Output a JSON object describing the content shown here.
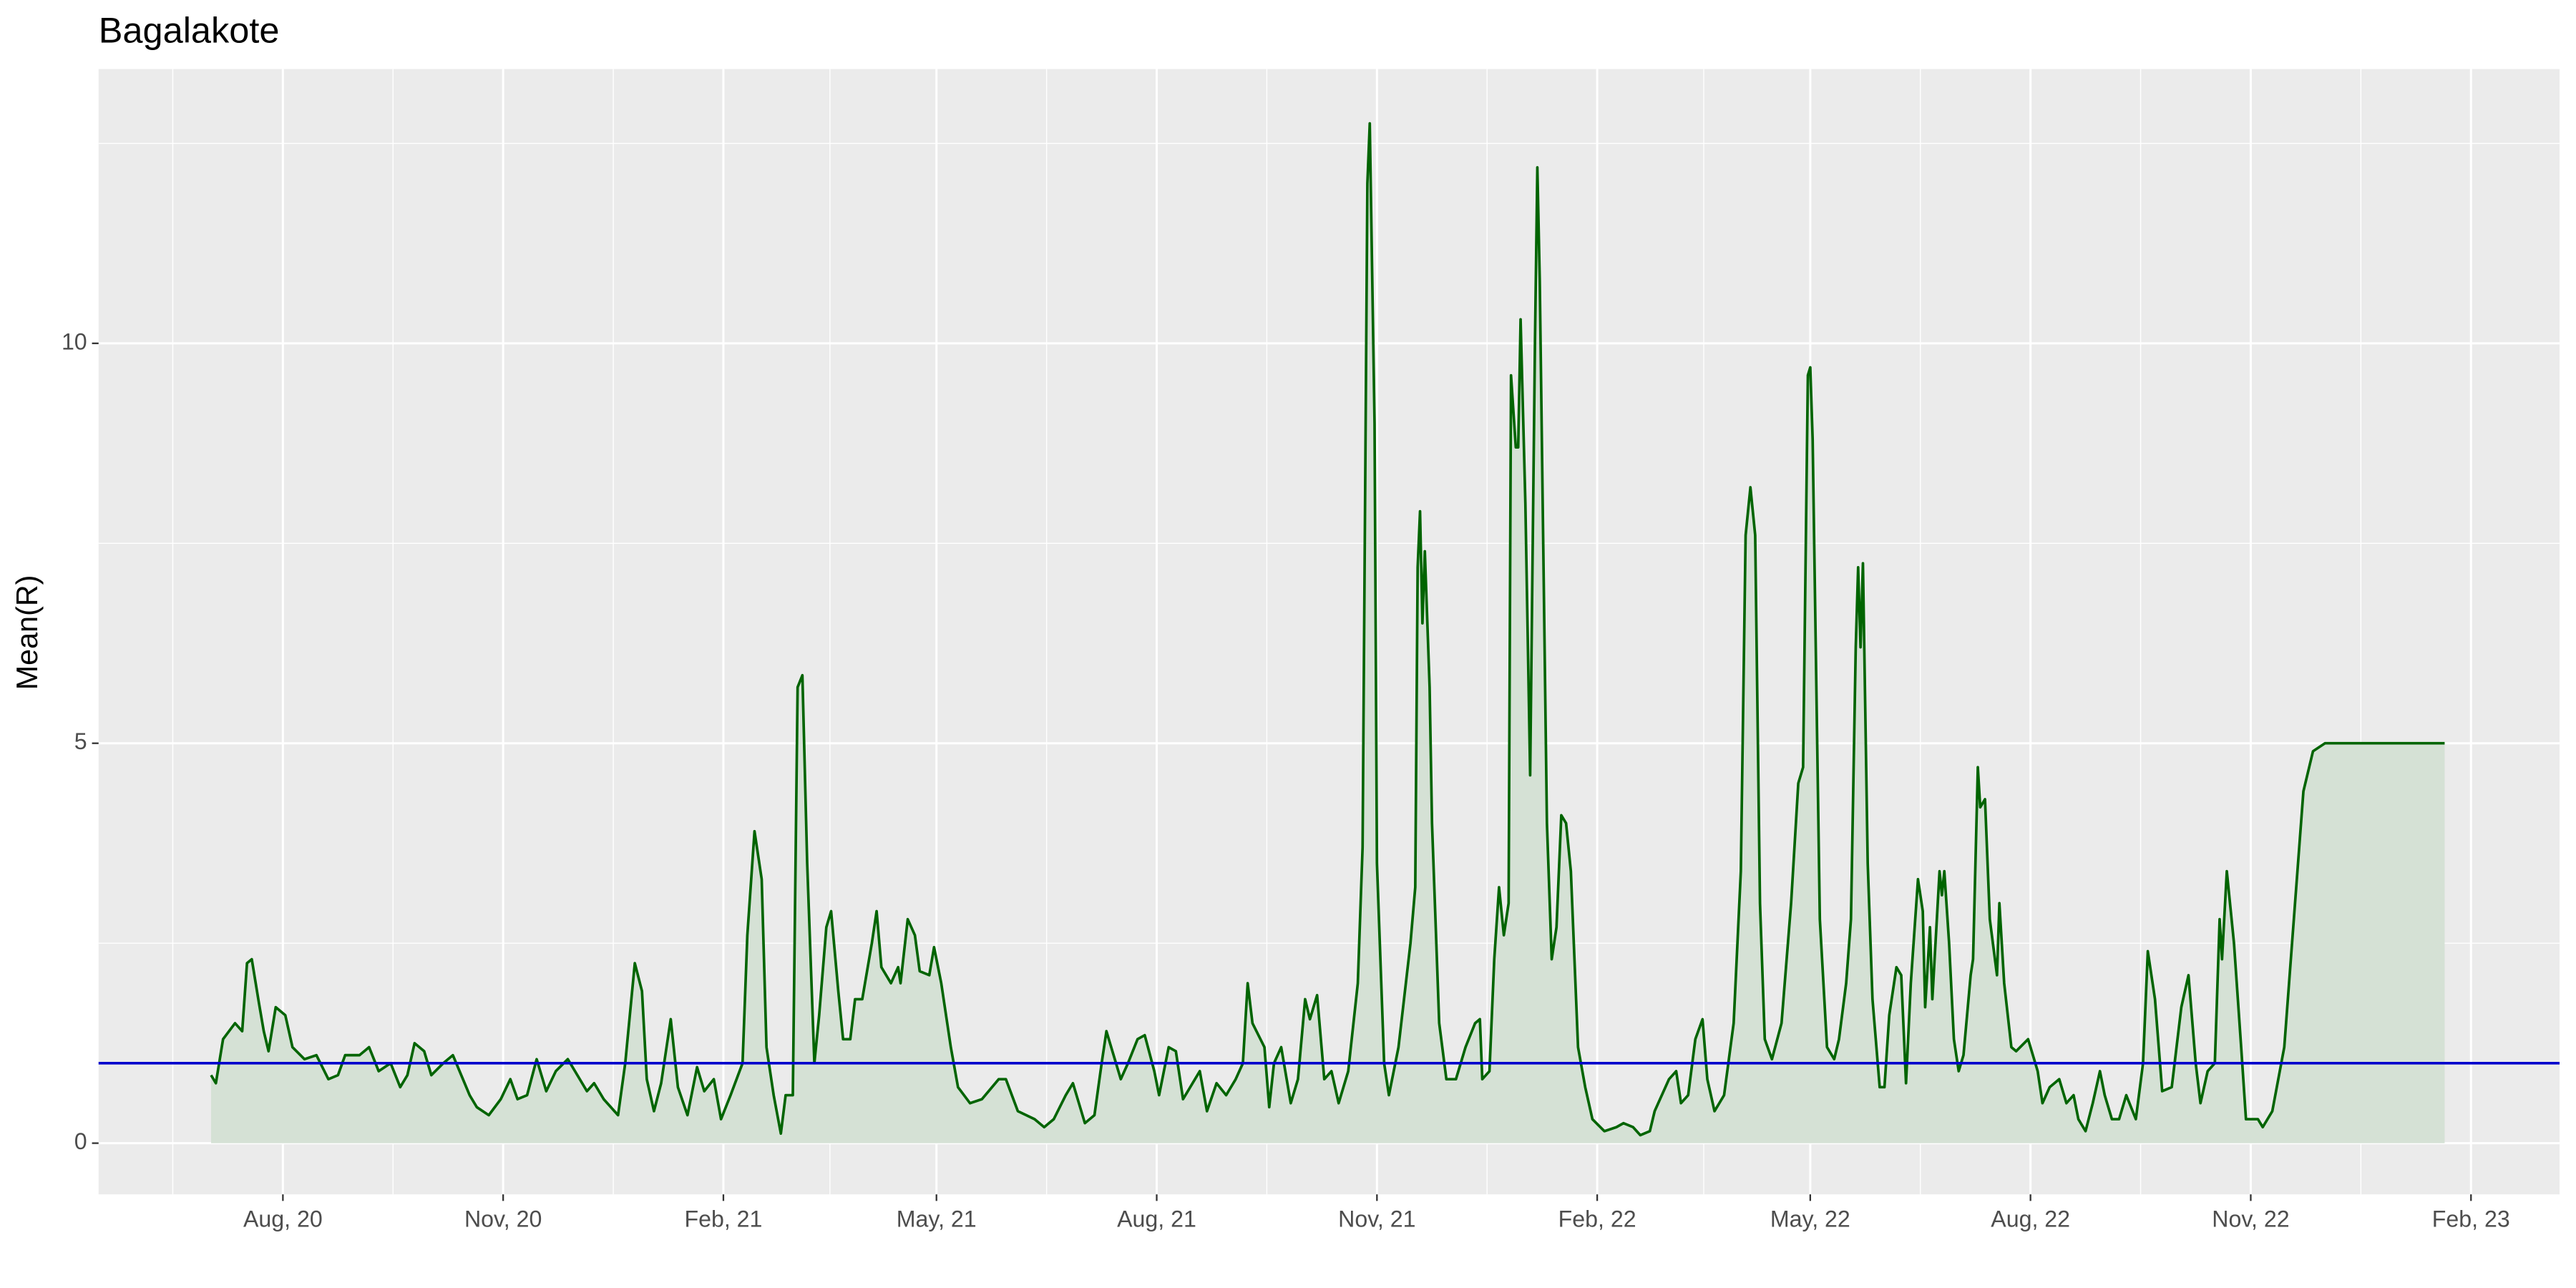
{
  "chart_data": {
    "type": "area-line",
    "title": "Bagalakote",
    "y_label": "Mean(R)",
    "grid": true,
    "hline": {
      "value": 1,
      "color": "#0000cc"
    },
    "xlim": [
      -77,
      951
    ],
    "xticks": [
      {
        "value": 0,
        "label": "Aug, 20"
      },
      {
        "value": 92,
        "label": "Nov, 20"
      },
      {
        "value": 184,
        "label": "Feb, 21"
      },
      {
        "value": 273,
        "label": "May, 21"
      },
      {
        "value": 365,
        "label": "Aug, 21"
      },
      {
        "value": 457,
        "label": "Nov, 21"
      },
      {
        "value": 549,
        "label": "Feb, 22"
      },
      {
        "value": 638,
        "label": "May, 22"
      },
      {
        "value": 730,
        "label": "Aug, 22"
      },
      {
        "value": 822,
        "label": "Nov, 22"
      },
      {
        "value": 914,
        "label": "Feb, 23"
      }
    ],
    "ylim": [
      -0.64,
      13.43
    ],
    "yticks": [
      0,
      5,
      10
    ],
    "x": [
      -30,
      -28,
      -25,
      -20,
      -17,
      -15,
      -13,
      -10,
      -8,
      -6,
      -3,
      1,
      4,
      9,
      14,
      19,
      23,
      26,
      32,
      36,
      40,
      45,
      49,
      52,
      55,
      59,
      62,
      67,
      71,
      78,
      81,
      86,
      91,
      95,
      98,
      102,
      106,
      110,
      114,
      119,
      122,
      127,
      130,
      134,
      140,
      143,
      147,
      150,
      152,
      155,
      158,
      162,
      165,
      169,
      173,
      176,
      180,
      183,
      187,
      192,
      194,
      197,
      200,
      202,
      205,
      208,
      210,
      213,
      215,
      217,
      219,
      222,
      224,
      227,
      229,
      232,
      234,
      237,
      239,
      242,
      246,
      248,
      250,
      254,
      257,
      258,
      261,
      264,
      266,
      270,
      272,
      275,
      279,
      282,
      287,
      292,
      299,
      302,
      307,
      314,
      318,
      322,
      327,
      330,
      332,
      335,
      339,
      342,
      344,
      346,
      350,
      353,
      357,
      360,
      364,
      366,
      370,
      373,
      376,
      379,
      383,
      386,
      390,
      394,
      398,
      401,
      403,
      405,
      410,
      412,
      414,
      417,
      421,
      424,
      427,
      429,
      432,
      435,
      438,
      441,
      445,
      449,
      451,
      453,
      454,
      456,
      457,
      460,
      462,
      466,
      471,
      473,
      474,
      475,
      476,
      477,
      479,
      480,
      483,
      486,
      490,
      494,
      498,
      500,
      501,
      504,
      506,
      508,
      510,
      512,
      513,
      515,
      516,
      517,
      519,
      521,
      523,
      524,
      525,
      528,
      530,
      532,
      534,
      536,
      538,
      541,
      544,
      547,
      552,
      557,
      560,
      564,
      567,
      571,
      573,
      576,
      579,
      582,
      584,
      587,
      590,
      593,
      595,
      598,
      602,
      606,
      609,
      611,
      613,
      615,
      617,
      619,
      622,
      626,
      630,
      633,
      635,
      637,
      638,
      639,
      642,
      645,
      648,
      650,
      653,
      655,
      657,
      658,
      659,
      660,
      662,
      664,
      667,
      669,
      671,
      674,
      676,
      678,
      680,
      683,
      685,
      686,
      688,
      689,
      692,
      693,
      694,
      696,
      698,
      700,
      702,
      705,
      706,
      708,
      709,
      711,
      713,
      716,
      717,
      719,
      722,
      724,
      729,
      733,
      735,
      738,
      742,
      745,
      748,
      750,
      753,
      756,
      759,
      761,
      764,
      767,
      770,
      774,
      777,
      779,
      782,
      785,
      789,
      793,
      796,
      799,
      801,
      804,
      807,
      809,
      810,
      812,
      815,
      818,
      820,
      825,
      827,
      831,
      836,
      840,
      844,
      848,
      853,
      870,
      890,
      903
    ],
    "series": [
      {
        "name": "Mean(R)",
        "color": "#006400",
        "fill": "#d5e1d5",
        "values": [
          0.85,
          0.75,
          1.3,
          1.5,
          1.4,
          2.25,
          2.3,
          1.75,
          1.4,
          1.15,
          1.7,
          1.6,
          1.2,
          1.05,
          1.1,
          0.8,
          0.85,
          1.1,
          1.1,
          1.2,
          0.9,
          1.0,
          0.7,
          0.85,
          1.25,
          1.15,
          0.85,
          1.0,
          1.1,
          0.6,
          0.45,
          0.35,
          0.55,
          0.8,
          0.55,
          0.6,
          1.05,
          0.65,
          0.9,
          1.05,
          0.9,
          0.65,
          0.75,
          0.55,
          0.35,
          1.0,
          2.25,
          1.9,
          0.8,
          0.4,
          0.75,
          1.55,
          0.7,
          0.35,
          0.95,
          0.65,
          0.8,
          0.3,
          0.6,
          1.0,
          2.6,
          3.9,
          3.3,
          1.2,
          0.6,
          0.12,
          0.6,
          0.6,
          5.7,
          5.85,
          3.5,
          1.0,
          1.6,
          2.7,
          2.9,
          1.9,
          1.3,
          1.3,
          1.8,
          1.8,
          2.5,
          2.9,
          2.2,
          2.0,
          2.2,
          2.0,
          2.8,
          2.6,
          2.15,
          2.1,
          2.45,
          2.0,
          1.2,
          0.7,
          0.5,
          0.55,
          0.8,
          0.8,
          0.4,
          0.3,
          0.2,
          0.3,
          0.6,
          0.75,
          0.55,
          0.25,
          0.35,
          1.0,
          1.4,
          1.2,
          0.8,
          1.0,
          1.3,
          1.35,
          0.9,
          0.6,
          1.2,
          1.15,
          0.55,
          0.7,
          0.9,
          0.4,
          0.75,
          0.6,
          0.8,
          1.0,
          2.0,
          1.5,
          1.2,
          0.45,
          1.0,
          1.2,
          0.5,
          0.8,
          1.8,
          1.55,
          1.85,
          0.8,
          0.9,
          0.5,
          0.9,
          2.0,
          3.7,
          12.0,
          12.75,
          9.0,
          3.5,
          1.0,
          0.6,
          1.2,
          2.5,
          3.2,
          7.2,
          7.9,
          6.5,
          7.4,
          5.7,
          4.0,
          1.5,
          0.8,
          0.8,
          1.2,
          1.5,
          1.55,
          0.8,
          0.9,
          2.3,
          3.2,
          2.6,
          3.0,
          9.6,
          8.7,
          8.7,
          10.3,
          8.0,
          4.6,
          10.0,
          12.2,
          10.8,
          4.0,
          2.3,
          2.7,
          4.1,
          4.0,
          3.4,
          1.2,
          0.7,
          0.3,
          0.15,
          0.2,
          0.25,
          0.2,
          0.1,
          0.15,
          0.4,
          0.6,
          0.8,
          0.9,
          0.5,
          0.6,
          1.3,
          1.55,
          0.8,
          0.4,
          0.6,
          1.5,
          3.4,
          7.6,
          8.2,
          7.6,
          3.0,
          1.3,
          1.05,
          1.5,
          3.0,
          4.5,
          4.7,
          9.6,
          9.7,
          8.8,
          2.8,
          1.2,
          1.05,
          1.3,
          2.0,
          2.8,
          6.2,
          7.2,
          6.2,
          7.25,
          3.5,
          1.8,
          0.7,
          0.7,
          1.6,
          2.2,
          2.1,
          0.75,
          2.0,
          3.3,
          2.9,
          1.7,
          2.7,
          1.8,
          3.4,
          3.1,
          3.4,
          2.5,
          1.3,
          0.9,
          1.1,
          2.1,
          2.3,
          4.7,
          4.2,
          4.3,
          2.8,
          2.1,
          3.0,
          2.0,
          1.2,
          1.15,
          1.3,
          0.9,
          0.5,
          0.7,
          0.8,
          0.5,
          0.6,
          0.3,
          0.15,
          0.5,
          0.9,
          0.6,
          0.3,
          0.3,
          0.6,
          0.3,
          1.0,
          2.4,
          1.8,
          0.65,
          0.7,
          1.7,
          2.1,
          1.0,
          0.5,
          0.9,
          1.0,
          2.8,
          2.3,
          3.4,
          2.5,
          1.2,
          0.3,
          0.3,
          0.2,
          0.4,
          1.2,
          2.8,
          4.4,
          4.9,
          5.0,
          5.0,
          5.0,
          5.0
        ]
      }
    ]
  }
}
